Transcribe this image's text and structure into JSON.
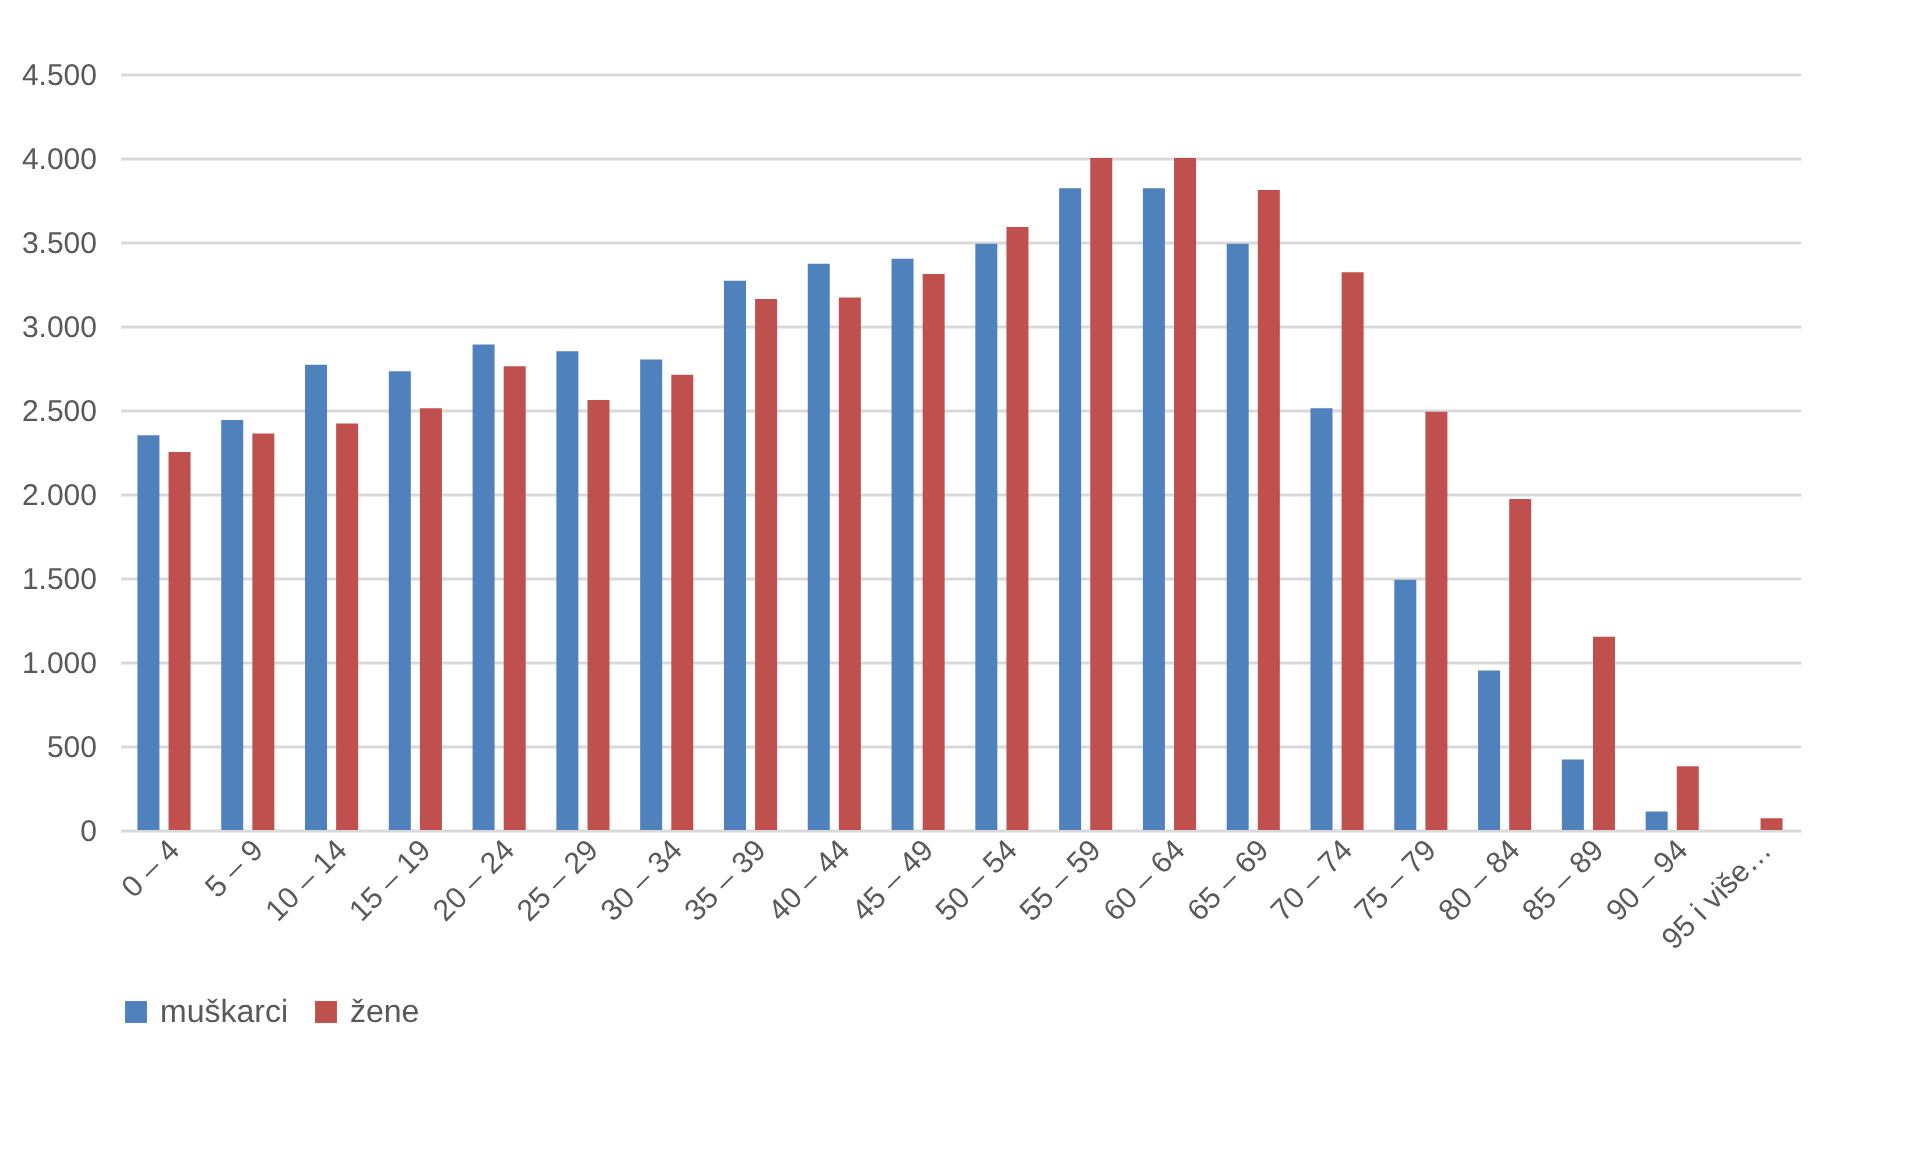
{
  "chart_data": {
    "type": "bar",
    "categories": [
      "0 – 4",
      "5 – 9",
      "10 – 14",
      "15 – 19",
      "20 – 24",
      "25 – 29",
      "30 – 34",
      "35 – 39",
      "40 – 44",
      "45 – 49",
      "50 – 54",
      "55 – 59",
      "60 – 64",
      "65 – 69",
      "70 – 74",
      "75 – 79",
      "80 – 84",
      "85 – 89",
      "90 – 94",
      "95 i više…"
    ],
    "series": [
      {
        "name": "muškarci",
        "color": "#4f81bd",
        "values": [
          2350,
          2440,
          2770,
          2730,
          2890,
          2850,
          2800,
          3270,
          3370,
          3400,
          3490,
          3820,
          3820,
          3490,
          2510,
          1490,
          950,
          420,
          110,
          0
        ]
      },
      {
        "name": "žene",
        "color": "#c0504d",
        "values": [
          2250,
          2360,
          2420,
          2510,
          2760,
          2560,
          2710,
          3160,
          3170,
          3310,
          3590,
          4000,
          4000,
          3810,
          3320,
          2490,
          1970,
          1150,
          380,
          70
        ]
      }
    ],
    "ylim": [
      0,
      4500
    ],
    "yticks": [
      0,
      {
        "value": 500,
        "label": "500"
      },
      {
        "value": 1000,
        "label": "1.000"
      },
      {
        "value": 1500,
        "label": "1.500"
      },
      {
        "value": 2000,
        "label": "2.000"
      },
      {
        "value": 2500,
        "label": "2.500"
      },
      {
        "value": 3000,
        "label": "3.000"
      },
      {
        "value": 3500,
        "label": "3.500"
      },
      {
        "value": 4000,
        "label": "4.000"
      },
      {
        "value": 4500,
        "label": "4.500"
      }
    ],
    "grid": "y",
    "legend": "bottom"
  }
}
